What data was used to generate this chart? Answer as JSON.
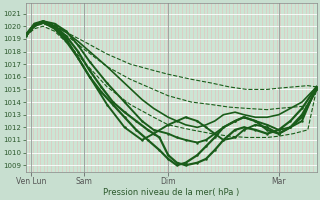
{
  "xlabel": "Pression niveau de la mer( hPa )",
  "bg_color": "#c8dfd0",
  "plot_bg_color": "#cce5d4",
  "grid_color_v": "#e8b8b8",
  "grid_color_h": "#ffffff",
  "line_color": "#1a5c1a",
  "dot_color": "#1a5c1a",
  "ylim": [
    1008.5,
    1021.8
  ],
  "yticks": [
    1009,
    1010,
    1011,
    1012,
    1013,
    1014,
    1015,
    1016,
    1017,
    1018,
    1019,
    1020,
    1021
  ],
  "xlim": [
    0,
    1.0
  ],
  "xtick_positions": [
    0.02,
    0.2,
    0.49,
    0.87
  ],
  "xtick_labels": [
    "Ven Lun",
    "Sam",
    "Dim",
    "Mar"
  ],
  "n_minor_v": 80,
  "lines": [
    {
      "x": [
        0.0,
        0.03,
        0.06,
        0.1,
        0.15,
        0.2,
        0.28,
        0.36,
        0.44,
        0.49,
        0.57,
        0.64,
        0.7,
        0.76,
        0.83,
        0.87,
        0.92,
        0.97,
        1.0
      ],
      "y": [
        1019.2,
        1020.1,
        1020.3,
        1020.1,
        1019.4,
        1018.8,
        1017.8,
        1017.0,
        1016.5,
        1016.2,
        1015.8,
        1015.5,
        1015.2,
        1015.0,
        1015.0,
        1015.1,
        1015.2,
        1015.3,
        1015.2
      ],
      "lw": 0.8,
      "style": "--",
      "marker": null
    },
    {
      "x": [
        0.0,
        0.03,
        0.06,
        0.1,
        0.15,
        0.2,
        0.28,
        0.36,
        0.44,
        0.49,
        0.57,
        0.64,
        0.7,
        0.76,
        0.83,
        0.87,
        0.92,
        0.97,
        1.0
      ],
      "y": [
        1019.2,
        1020.0,
        1020.2,
        1019.9,
        1019.1,
        1018.2,
        1016.8,
        1015.8,
        1015.0,
        1014.5,
        1014.0,
        1013.8,
        1013.6,
        1013.5,
        1013.4,
        1013.5,
        1013.6,
        1013.7,
        1015.0
      ],
      "lw": 0.8,
      "style": "--",
      "marker": null
    },
    {
      "x": [
        0.0,
        0.03,
        0.06,
        0.1,
        0.15,
        0.2,
        0.28,
        0.36,
        0.44,
        0.49,
        0.57,
        0.64,
        0.7,
        0.76,
        0.83,
        0.87,
        0.92,
        0.97,
        1.0
      ],
      "y": [
        1019.2,
        1019.8,
        1020.0,
        1019.6,
        1018.5,
        1017.2,
        1015.2,
        1013.8,
        1012.8,
        1012.2,
        1011.8,
        1011.5,
        1011.3,
        1011.2,
        1011.2,
        1011.3,
        1011.5,
        1011.8,
        1015.0
      ],
      "lw": 0.8,
      "style": "--",
      "marker": null
    },
    {
      "x": [
        0.0,
        0.03,
        0.06,
        0.1,
        0.14,
        0.18,
        0.22,
        0.28,
        0.34,
        0.4,
        0.44,
        0.49,
        0.52,
        0.55,
        0.59,
        0.62,
        0.65,
        0.68,
        0.72,
        0.75,
        0.79,
        0.83,
        0.87,
        0.91,
        0.95,
        1.0
      ],
      "y": [
        1019.2,
        1020.0,
        1020.3,
        1020.0,
        1019.5,
        1018.8,
        1018.0,
        1016.8,
        1015.5,
        1014.2,
        1013.5,
        1012.8,
        1012.5,
        1012.2,
        1012.0,
        1012.2,
        1012.5,
        1013.0,
        1013.2,
        1013.0,
        1012.8,
        1012.8,
        1013.0,
        1013.5,
        1014.0,
        1015.2
      ],
      "lw": 1.2,
      "style": "-",
      "marker": null
    },
    {
      "x": [
        0.0,
        0.03,
        0.06,
        0.1,
        0.14,
        0.18,
        0.22,
        0.28,
        0.34,
        0.4,
        0.44,
        0.49,
        0.52,
        0.55,
        0.59,
        0.62,
        0.65,
        0.68,
        0.72,
        0.75,
        0.79,
        0.83,
        0.87,
        0.91,
        0.95,
        1.0
      ],
      "y": [
        1019.3,
        1020.1,
        1020.4,
        1020.2,
        1019.6,
        1018.5,
        1017.2,
        1015.5,
        1014.0,
        1012.5,
        1011.8,
        1011.5,
        1011.2,
        1011.0,
        1010.8,
        1011.0,
        1011.5,
        1012.0,
        1012.5,
        1012.8,
        1012.5,
        1012.2,
        1011.8,
        1012.0,
        1012.5,
        1015.2
      ],
      "lw": 1.4,
      "style": "-",
      "marker": "."
    },
    {
      "x": [
        0.0,
        0.03,
        0.06,
        0.1,
        0.14,
        0.18,
        0.22,
        0.28,
        0.34,
        0.4,
        0.44,
        0.49,
        0.52,
        0.55,
        0.59,
        0.62,
        0.65,
        0.68,
        0.72,
        0.75,
        0.79,
        0.83,
        0.87,
        0.91,
        0.95,
        1.0
      ],
      "y": [
        1019.2,
        1020.0,
        1020.3,
        1019.9,
        1019.0,
        1017.5,
        1016.0,
        1013.8,
        1012.0,
        1011.0,
        1011.5,
        1012.2,
        1012.5,
        1012.8,
        1012.5,
        1012.0,
        1011.5,
        1011.0,
        1011.2,
        1011.8,
        1012.2,
        1012.0,
        1011.5,
        1012.0,
        1012.8,
        1015.0
      ],
      "lw": 1.4,
      "style": "-",
      "marker": "."
    },
    {
      "x": [
        0.0,
        0.03,
        0.06,
        0.1,
        0.14,
        0.18,
        0.22,
        0.26,
        0.3,
        0.34,
        0.38,
        0.42,
        0.46,
        0.49,
        0.52,
        0.55,
        0.59,
        0.62,
        0.65,
        0.68,
        0.72,
        0.75,
        0.79,
        0.83,
        0.87,
        0.91,
        0.95,
        1.0
      ],
      "y": [
        1019.3,
        1020.2,
        1020.4,
        1020.0,
        1019.2,
        1018.0,
        1016.5,
        1015.2,
        1014.0,
        1013.2,
        1012.5,
        1011.8,
        1011.2,
        1009.8,
        1009.2,
        1009.0,
        1009.2,
        1009.5,
        1010.2,
        1011.0,
        1011.8,
        1012.0,
        1011.8,
        1011.5,
        1011.8,
        1012.5,
        1013.5,
        1015.2
      ],
      "lw": 1.6,
      "style": "-",
      "marker": "."
    },
    {
      "x": [
        0.0,
        0.03,
        0.06,
        0.1,
        0.14,
        0.18,
        0.22,
        0.26,
        0.3,
        0.34,
        0.38,
        0.42,
        0.46,
        0.49,
        0.52,
        0.55,
        0.59,
        0.62,
        0.65,
        0.68,
        0.72,
        0.75,
        0.79,
        0.83,
        0.87,
        0.91,
        0.95,
        1.0
      ],
      "y": [
        1019.3,
        1020.1,
        1020.3,
        1019.8,
        1018.8,
        1017.5,
        1016.0,
        1014.8,
        1013.8,
        1012.8,
        1011.8,
        1011.0,
        1010.2,
        1009.5,
        1009.0,
        1009.2,
        1009.8,
        1010.5,
        1011.2,
        1012.0,
        1012.5,
        1012.8,
        1012.5,
        1011.8,
        1011.5,
        1012.0,
        1013.0,
        1015.0
      ],
      "lw": 1.6,
      "style": "-",
      "marker": "."
    }
  ]
}
